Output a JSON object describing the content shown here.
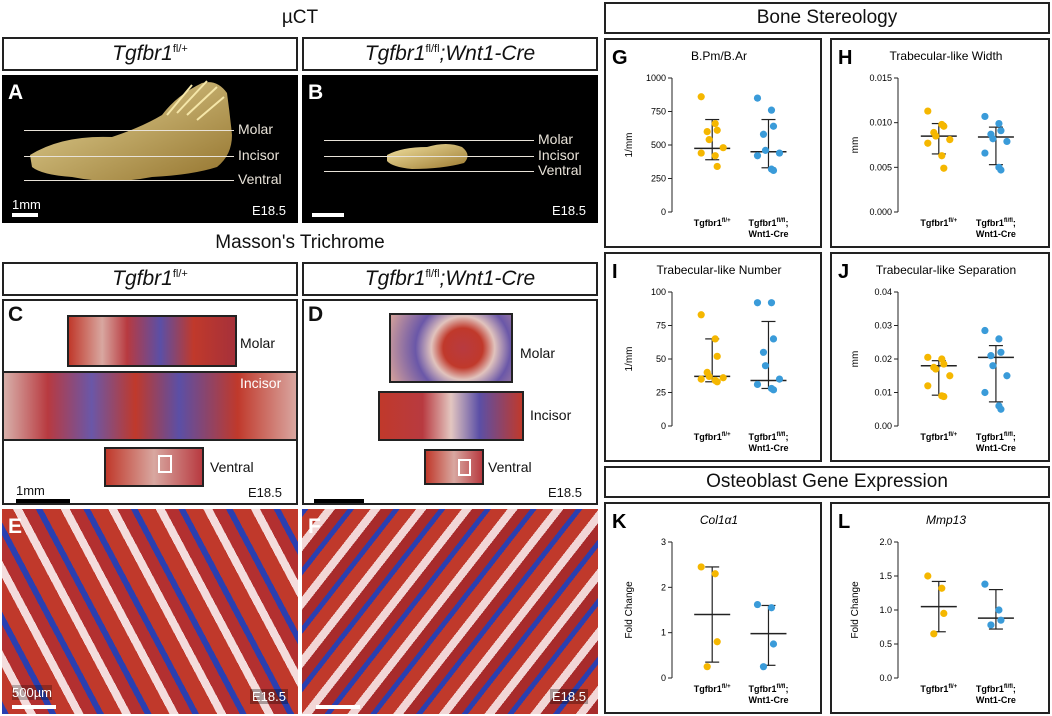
{
  "headers": {
    "uct": "µCT",
    "masson": "Masson's Trichrome",
    "stereology": "Bone Stereology",
    "gene_expr": "Osteoblast Gene Expression"
  },
  "genotypes": {
    "ctrl_gene": "Tgfbr1",
    "ctrl_sup": "fl/+",
    "mut_gene": "Tgfbr1",
    "mut_sup": "fl/fl",
    "mut_suffix": ";Wnt1-Cre"
  },
  "ct_labels": {
    "molar": "Molar",
    "incisor": "Incisor",
    "ventral": "Ventral"
  },
  "panels": {
    "A": "A",
    "B": "B",
    "C": "C",
    "D": "D",
    "E": "E",
    "F": "F",
    "G": "G",
    "H": "H",
    "I": "I",
    "J": "J",
    "K": "K",
    "L": "L"
  },
  "stage": "E18.5",
  "scalebars": {
    "ct": "1mm",
    "histo": "1mm",
    "micro": "500µm"
  },
  "colors": {
    "control": "#f5b700",
    "mutant": "#3a9bd9",
    "bone_ct": "#d9c27a",
    "stain_red": "#c0392b",
    "stain_blue": "#2a3fb0"
  },
  "chart_data": [
    {
      "panel": "G",
      "type": "scatter",
      "title": "B.Pm/B.Ar",
      "ylabel": "1/mm",
      "ylim": [
        0,
        1000
      ],
      "yticks": [
        "0",
        "250",
        "500",
        "750",
        "1000"
      ],
      "categories": [
        "Tgfbr1fl/+",
        "Tgfbr1fl/fl;Wnt1-Cre"
      ],
      "series": [
        {
          "values": [
            860,
            660,
            610,
            600,
            540,
            480,
            440,
            420,
            340
          ],
          "median": 475,
          "lower": 390,
          "upper": 690
        },
        {
          "values": [
            850,
            760,
            640,
            580,
            460,
            440,
            420,
            320,
            310
          ],
          "median": 450,
          "lower": 330,
          "upper": 690
        }
      ]
    },
    {
      "panel": "H",
      "type": "scatter",
      "title": "Trabecular-like Width",
      "ylabel": "mm",
      "ylim": [
        0,
        0.015
      ],
      "yticks": [
        "0.000",
        "0.005",
        "0.010",
        "0.015"
      ],
      "categories": [
        "Tgfbr1fl/+",
        "Tgfbr1fl/fl;Wnt1-Cre"
      ],
      "series": [
        {
          "values": [
            0.0113,
            0.0098,
            0.0096,
            0.0089,
            0.0085,
            0.0081,
            0.0077,
            0.0063,
            0.0049
          ],
          "median": 0.0085,
          "lower": 0.0065,
          "upper": 0.0099
        },
        {
          "values": [
            0.0107,
            0.0099,
            0.0091,
            0.0087,
            0.0082,
            0.0079,
            0.0066,
            0.005,
            0.0047
          ],
          "median": 0.0084,
          "lower": 0.0053,
          "upper": 0.0095
        }
      ]
    },
    {
      "panel": "I",
      "type": "scatter",
      "title": "Trabecular-like Number",
      "ylabel": "1/mm",
      "ylim": [
        0,
        100
      ],
      "yticks": [
        "0",
        "25",
        "50",
        "75",
        "100"
      ],
      "categories": [
        "Tgfbr1fl/+",
        "Tgfbr1fl/fl;Wnt1-Cre"
      ],
      "series": [
        {
          "values": [
            83,
            65,
            52,
            40,
            37,
            36,
            35,
            34,
            33
          ],
          "median": 37,
          "lower": 33,
          "upper": 65
        },
        {
          "values": [
            92,
            92,
            65,
            55,
            45,
            35,
            31,
            28,
            27
          ],
          "median": 34,
          "lower": 28,
          "upper": 78
        }
      ]
    },
    {
      "panel": "J",
      "type": "scatter",
      "title": "Trabecular-like Separation",
      "ylabel": "mm",
      "ylim": [
        0,
        0.04
      ],
      "yticks": [
        "0.00",
        "0.01",
        "0.02",
        "0.03",
        "0.04"
      ],
      "categories": [
        "Tgfbr1fl/+",
        "Tgfbr1fl/fl;Wnt1-Cre"
      ],
      "series": [
        {
          "values": [
            0.0205,
            0.02,
            0.0185,
            0.0175,
            0.017,
            0.015,
            0.012,
            0.009,
            0.0088
          ],
          "median": 0.018,
          "lower": 0.0092,
          "upper": 0.0195
        },
        {
          "values": [
            0.0285,
            0.026,
            0.022,
            0.021,
            0.018,
            0.015,
            0.01,
            0.006,
            0.005
          ],
          "median": 0.0205,
          "lower": 0.0072,
          "upper": 0.024
        }
      ]
    },
    {
      "panel": "K",
      "type": "scatter",
      "title": "Col1α1",
      "title_italic": true,
      "ylabel": "Fold Change",
      "ylim": [
        0,
        3
      ],
      "yticks": [
        "0",
        "1",
        "2",
        "3"
      ],
      "categories": [
        "Tgfbr1fl/+",
        "Tgfbr1fl/fl;Wnt1-Cre"
      ],
      "series": [
        {
          "values": [
            2.45,
            2.3,
            0.8,
            0.25
          ],
          "median": 1.4,
          "lower": 0.35,
          "upper": 2.45
        },
        {
          "values": [
            1.62,
            1.55,
            0.75,
            0.25
          ],
          "median": 0.98,
          "lower": 0.28,
          "upper": 1.6
        }
      ]
    },
    {
      "panel": "L",
      "type": "scatter",
      "title": "Mmp13",
      "title_italic": true,
      "ylabel": "Fold Change",
      "ylim": [
        0,
        2
      ],
      "yticks": [
        "0.0",
        "0.5",
        "1.0",
        "1.5",
        "2.0"
      ],
      "categories": [
        "Tgfbr1fl/+",
        "Tgfbr1fl/fl;Wnt1-Cre"
      ],
      "series": [
        {
          "values": [
            1.5,
            1.32,
            0.95,
            0.65
          ],
          "median": 1.05,
          "lower": 0.68,
          "upper": 1.42
        },
        {
          "values": [
            1.38,
            1.0,
            0.85,
            0.78
          ],
          "median": 0.88,
          "lower": 0.72,
          "upper": 1.3
        }
      ]
    }
  ],
  "xtick_labels": {
    "ctrl": "Tgfbr1",
    "ctrl_sup": "fl/+",
    "mut_line1": "Tgfbr1",
    "mut_sup": "fl/fl",
    "mut_line1_suffix": ";",
    "mut_line2": "Wnt1-Cre"
  }
}
